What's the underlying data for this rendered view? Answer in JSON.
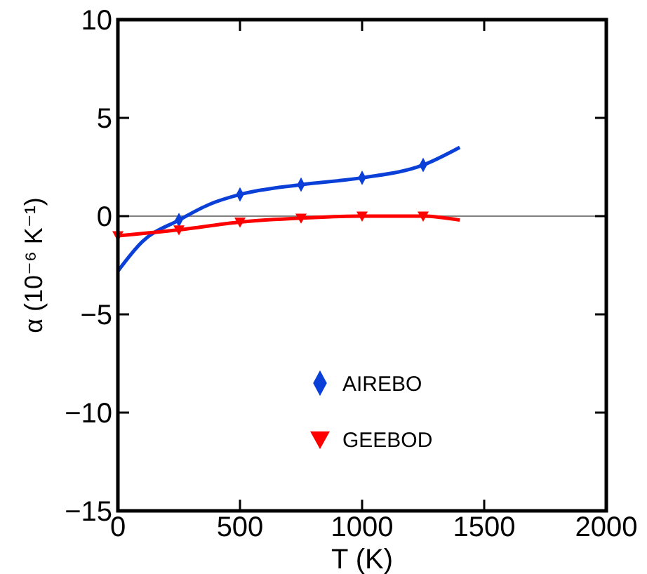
{
  "chart_data": {
    "type": "line",
    "xlabel": "T (K)",
    "ylabel": "α (10⁻⁶ K⁻¹)",
    "xlim": [
      0,
      2000
    ],
    "xticks": [
      0,
      500,
      1000,
      1500,
      2000
    ],
    "ylim": [
      -15,
      10
    ],
    "yticks": [
      -15,
      -10,
      -5,
      0,
      5,
      10
    ],
    "grid": false,
    "legend": "bottom",
    "ref_lines": [
      {
        "axis": "y",
        "value": 0,
        "color": "#808080"
      }
    ],
    "series": [
      {
        "color": "#0a3fd8",
        "x": [
          0,
          100,
          250,
          375,
          500,
          750,
          1000,
          1250,
          1400
        ],
        "values": [
          -2.8,
          -1.3,
          -0.2,
          0.6,
          1.1,
          1.6,
          1.95,
          2.6,
          3.5
        ]
      },
      {
        "color": "#ff0000",
        "x": [
          0,
          250,
          500,
          750,
          1000,
          1250,
          1400
        ],
        "values": [
          -1.0,
          -0.7,
          -0.3,
          -0.1,
          0,
          0,
          -0.2
        ]
      },
      {
        "type": "scatter",
        "name": "AIREBO",
        "color": "#0a3fd8",
        "marker": "diamond",
        "x": [
          250,
          500,
          750,
          1000,
          1250
        ],
        "values": [
          -0.2,
          1.1,
          1.6,
          1.95,
          2.6
        ]
      },
      {
        "type": "scatter",
        "name": "GEEBOD",
        "color": "#ff0000",
        "marker": "triangle",
        "x": [
          0,
          250,
          500,
          750,
          1000,
          1250
        ],
        "values": [
          -1.0,
          -0.7,
          -0.3,
          -0.1,
          0,
          0
        ]
      }
    ]
  }
}
